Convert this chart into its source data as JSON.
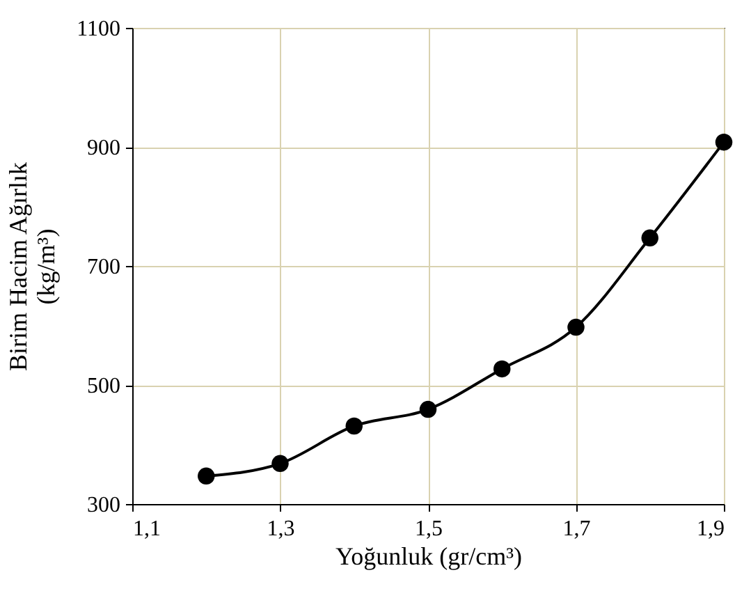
{
  "chart_data": {
    "type": "line",
    "xlabel": "Yoğunluk (gr/cm³)",
    "ylabel": "Birim Hacim Ağırlık\n(kg/m³)",
    "x": [
      1.2,
      1.3,
      1.4,
      1.5,
      1.6,
      1.7,
      1.8,
      1.9
    ],
    "series": [
      {
        "color": "#000000",
        "values": [
          347,
          368,
          431,
          459,
          527,
          597,
          747,
          908
        ]
      }
    ],
    "xlim": [
      1.1,
      1.9
    ],
    "xticks": [
      {
        "value": 1.1,
        "label": "1,1"
      },
      {
        "value": 1.3,
        "label": "1,3"
      },
      {
        "value": 1.5,
        "label": "1,5"
      },
      {
        "value": 1.7,
        "label": "1,7"
      },
      {
        "value": 1.9,
        "label": "1,9"
      }
    ],
    "ylim": [
      300,
      1100
    ],
    "yticks": [
      300,
      500,
      700,
      900,
      1100
    ],
    "grid": true,
    "marker": "circle",
    "line_style": "solid"
  }
}
